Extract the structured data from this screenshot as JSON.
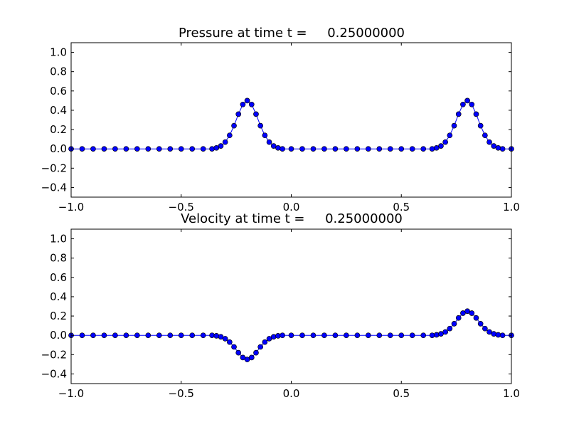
{
  "chart_data": [
    {
      "type": "scatter",
      "title": "Pressure at time t =     0.25000000",
      "xlabel": "",
      "ylabel": "",
      "xlim": [
        -1.0,
        1.0
      ],
      "ylim": [
        -0.5,
        1.1
      ],
      "xticks": [
        -1.0,
        -0.5,
        0.0,
        0.5,
        1.0
      ],
      "xtick_labels": [
        "−1.0",
        "−0.5",
        "0.0",
        "0.5",
        "1.0"
      ],
      "yticks": [
        -0.4,
        -0.2,
        0.0,
        0.2,
        0.4,
        0.6,
        0.8,
        1.0
      ],
      "ytick_labels": [
        "−0.4",
        "−0.2",
        "0.0",
        "0.2",
        "0.4",
        "0.6",
        "0.8",
        "1.0"
      ],
      "grid": false,
      "marker_color": "#0000ff",
      "line_color": "#0000ff",
      "series": [
        {
          "x": [
            -1.0,
            -0.95,
            -0.9,
            -0.85,
            -0.8,
            -0.75,
            -0.7,
            -0.65,
            -0.6,
            -0.55,
            -0.5,
            -0.45,
            -0.4,
            -0.36,
            -0.34,
            -0.32,
            -0.3,
            -0.28,
            -0.26,
            -0.24,
            -0.22,
            -0.2,
            -0.18,
            -0.16,
            -0.14,
            -0.12,
            -0.1,
            -0.08,
            -0.06,
            -0.04,
            0.0,
            0.05,
            0.1,
            0.15,
            0.2,
            0.25,
            0.3,
            0.35,
            0.4,
            0.45,
            0.5,
            0.55,
            0.6,
            0.64,
            0.66,
            0.68,
            0.7,
            0.72,
            0.74,
            0.76,
            0.78,
            0.8,
            0.82,
            0.84,
            0.86,
            0.88,
            0.9,
            0.92,
            0.94,
            0.96,
            1.0
          ],
          "y": [
            0.0,
            0.0,
            0.0,
            0.0,
            0.0,
            0.0,
            0.0,
            0.0,
            0.0,
            0.0,
            0.0,
            0.0,
            0.0,
            0.0,
            0.01,
            0.03,
            0.07,
            0.14,
            0.24,
            0.36,
            0.46,
            0.5,
            0.46,
            0.36,
            0.24,
            0.14,
            0.07,
            0.03,
            0.01,
            0.0,
            0.0,
            0.0,
            0.0,
            0.0,
            0.0,
            0.0,
            0.0,
            0.0,
            0.0,
            0.0,
            0.0,
            0.0,
            0.0,
            0.0,
            0.01,
            0.03,
            0.07,
            0.14,
            0.24,
            0.36,
            0.46,
            0.5,
            0.46,
            0.36,
            0.24,
            0.14,
            0.07,
            0.03,
            0.01,
            0.0,
            0.0
          ]
        }
      ]
    },
    {
      "type": "scatter",
      "title": "Velocity at time t =     0.25000000",
      "xlabel": "",
      "ylabel": "",
      "xlim": [
        -1.0,
        1.0
      ],
      "ylim": [
        -0.5,
        1.1
      ],
      "xticks": [
        -1.0,
        -0.5,
        0.0,
        0.5,
        1.0
      ],
      "xtick_labels": [
        "−1.0",
        "−0.5",
        "0.0",
        "0.5",
        "1.0"
      ],
      "yticks": [
        -0.4,
        -0.2,
        0.0,
        0.2,
        0.4,
        0.6,
        0.8,
        1.0
      ],
      "ytick_labels": [
        "−0.4",
        "−0.2",
        "0.0",
        "0.2",
        "0.4",
        "0.6",
        "0.8",
        "1.0"
      ],
      "grid": false,
      "marker_color": "#0000ff",
      "line_color": "#0000ff",
      "series": [
        {
          "x": [
            -1.0,
            -0.95,
            -0.9,
            -0.85,
            -0.8,
            -0.75,
            -0.7,
            -0.65,
            -0.6,
            -0.55,
            -0.5,
            -0.45,
            -0.4,
            -0.36,
            -0.34,
            -0.32,
            -0.3,
            -0.28,
            -0.26,
            -0.24,
            -0.22,
            -0.2,
            -0.18,
            -0.16,
            -0.14,
            -0.12,
            -0.1,
            -0.08,
            -0.06,
            -0.04,
            0.0,
            0.05,
            0.1,
            0.15,
            0.2,
            0.25,
            0.3,
            0.35,
            0.4,
            0.45,
            0.5,
            0.55,
            0.6,
            0.64,
            0.66,
            0.68,
            0.7,
            0.72,
            0.74,
            0.76,
            0.78,
            0.8,
            0.82,
            0.84,
            0.86,
            0.88,
            0.9,
            0.92,
            0.94,
            0.96,
            1.0
          ],
          "y": [
            0.0,
            0.0,
            0.0,
            0.0,
            0.0,
            0.0,
            0.0,
            0.0,
            0.0,
            0.0,
            0.0,
            0.0,
            0.0,
            0.0,
            -0.005,
            -0.015,
            -0.035,
            -0.07,
            -0.12,
            -0.18,
            -0.23,
            -0.25,
            -0.23,
            -0.18,
            -0.12,
            -0.07,
            -0.035,
            -0.015,
            -0.005,
            0.0,
            0.0,
            0.0,
            0.0,
            0.0,
            0.0,
            0.0,
            0.0,
            0.0,
            0.0,
            0.0,
            0.0,
            0.0,
            0.0,
            0.0,
            0.005,
            0.015,
            0.035,
            0.07,
            0.12,
            0.18,
            0.23,
            0.25,
            0.23,
            0.18,
            0.12,
            0.07,
            0.035,
            0.015,
            0.005,
            0.0,
            0.0
          ]
        }
      ]
    }
  ]
}
